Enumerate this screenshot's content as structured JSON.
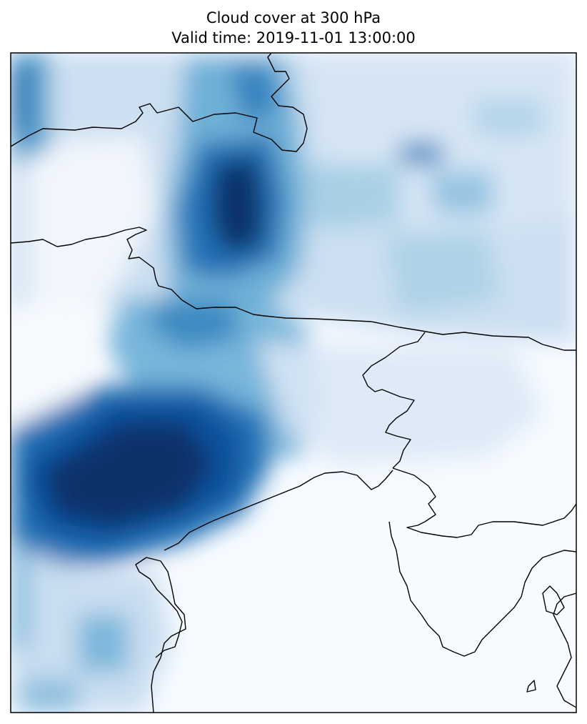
{
  "title": "Cloud cover at 300 hPa",
  "subtitle": "Valid time: 2019-11-01 13:00:00",
  "colormap": "Blues",
  "colors": {
    "low": "#f7fbff",
    "high": "#08306b",
    "coastline": "#000000",
    "frame": "#000000"
  },
  "layers": [
    "cloud-cover-field",
    "coastlines",
    "country-borders"
  ]
}
